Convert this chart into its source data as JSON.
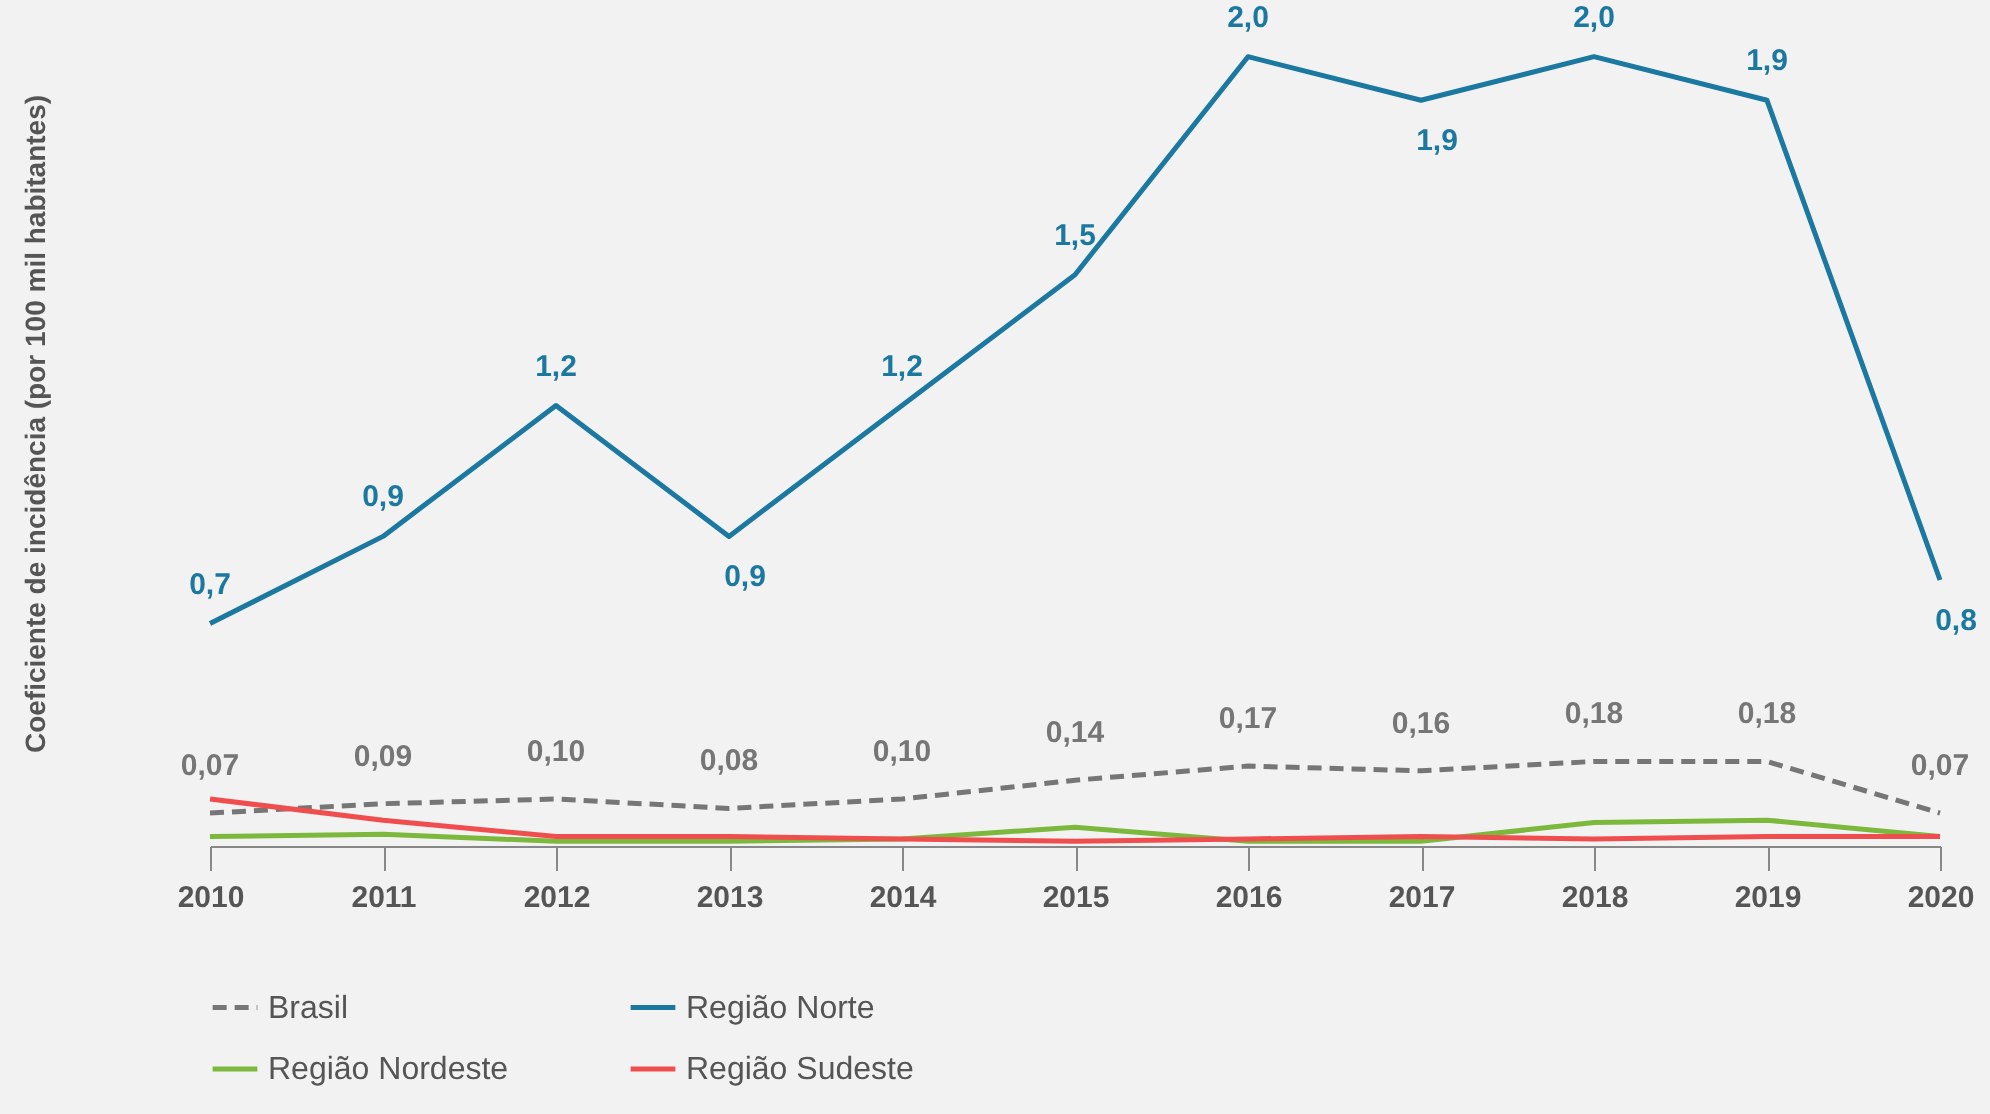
{
  "chart_data": {
    "type": "line",
    "ylabel": "Coeficiente de incidência (por 100 mil habitantes)",
    "categories": [
      "2010",
      "2011",
      "2012",
      "2013",
      "2014",
      "2015",
      "2016",
      "2017",
      "2018",
      "2019",
      "2020"
    ],
    "ylim": [
      0.19,
      2.13
    ],
    "y2lim": [
      0,
      1.8
    ],
    "legend": "bottom",
    "grid": false,
    "series": [
      {
        "name": "Brasil",
        "color": "#767676",
        "line_style": "dashed",
        "axis": "y2",
        "values": [
          0.07,
          0.09,
          0.1,
          0.08,
          0.1,
          0.14,
          0.17,
          0.16,
          0.18,
          0.18,
          0.07
        ],
        "value_labels": [
          "0,07",
          "0,09",
          "0,10",
          "0,08",
          "0,10",
          "0,14",
          "0,17",
          "0,16",
          "0,18",
          "0,18",
          "0,07"
        ]
      },
      {
        "name": "Região Norte",
        "color": "#1b78a0",
        "line_style": "solid",
        "values": [
          0.7,
          0.9,
          1.2,
          0.9,
          1.2,
          1.5,
          2.0,
          1.9,
          2.0,
          1.9,
          0.8
        ],
        "value_labels": [
          "0,7",
          "0,9",
          "1,2",
          "0,9",
          "1,2",
          "1,5",
          "2,0",
          "1,9",
          "2,0",
          "1,9",
          "0,8"
        ]
      },
      {
        "name": "Região Nordeste",
        "color": "#7cb83c",
        "line_style": "solid",
        "axis": "y2",
        "values": [
          0.02,
          0.025,
          0.01,
          0.01,
          0.015,
          0.04,
          0.01,
          0.01,
          0.05,
          0.055,
          0.02
        ]
      },
      {
        "name": "Região Sudeste",
        "color": "#f04e4e",
        "line_style": "solid",
        "axis": "y2",
        "values": [
          0.1,
          0.055,
          0.02,
          0.02,
          0.015,
          0.01,
          0.015,
          0.02,
          0.015,
          0.02,
          0.02
        ]
      }
    ]
  }
}
